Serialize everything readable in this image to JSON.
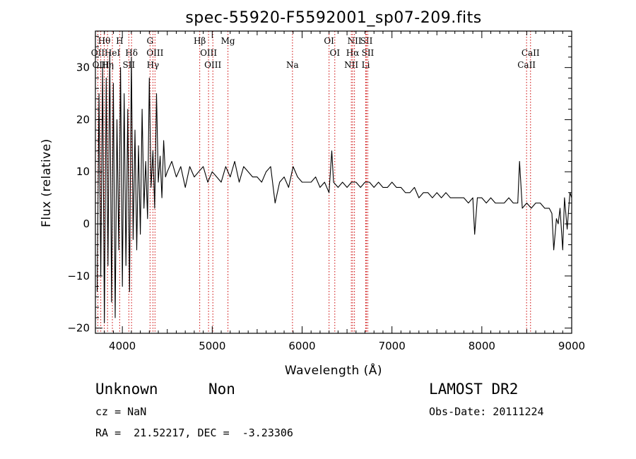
{
  "chart_data": {
    "type": "line",
    "title": "spec-55920-F5592001_sp07-209.fits",
    "xlabel": "Wavelength (Å)",
    "ylabel": "Flux (relative)",
    "xlim": [
      3700,
      9000
    ],
    "ylim": [
      -21,
      37
    ],
    "xticks": [
      4000,
      5000,
      6000,
      7000,
      8000,
      9000
    ],
    "yticks": [
      -20,
      -10,
      0,
      10,
      20,
      30
    ],
    "grid": false,
    "line_color": "#000000",
    "marker_color": "#cc0000",
    "series": [
      {
        "x": [
          3720,
          3740,
          3760,
          3780,
          3800,
          3820,
          3840,
          3860,
          3880,
          3900,
          3920,
          3940,
          3960,
          3980,
          4000,
          4020,
          4040,
          4060,
          4080,
          4100,
          4120,
          4140,
          4160,
          4180,
          4200,
          4220,
          4240,
          4260,
          4280,
          4300,
          4320,
          4340,
          4360,
          4380,
          4400,
          4420,
          4440,
          4460,
          4480,
          4500,
          4550,
          4600,
          4650,
          4700,
          4750,
          4800,
          4850,
          4900,
          4950,
          5000,
          5050,
          5100,
          5150,
          5200,
          5250,
          5300,
          5350,
          5400,
          5450,
          5500,
          5550,
          5600,
          5650,
          5700,
          5750,
          5800,
          5850,
          5900,
          5950,
          6000,
          6050,
          6100,
          6150,
          6200,
          6250,
          6300,
          6330,
          6350,
          6400,
          6450,
          6500,
          6550,
          6600,
          6650,
          6700,
          6750,
          6800,
          6850,
          6900,
          6950,
          7000,
          7050,
          7100,
          7150,
          7200,
          7250,
          7300,
          7350,
          7400,
          7450,
          7500,
          7550,
          7600,
          7650,
          7700,
          7750,
          7800,
          7850,
          7900,
          7920,
          7950,
          8000,
          8050,
          8100,
          8150,
          8200,
          8250,
          8300,
          8350,
          8400,
          8420,
          8450,
          8500,
          8550,
          8600,
          8650,
          8700,
          8750,
          8780,
          8800,
          8830,
          8850,
          8870,
          8900,
          8920,
          8950,
          8980,
          9000
        ],
        "y": [
          -13,
          25,
          -10,
          30,
          -19,
          28,
          -8,
          33,
          -15,
          27,
          -18,
          20,
          -5,
          30,
          -12,
          25,
          -8,
          22,
          -13,
          32,
          -3,
          18,
          -5,
          15,
          -2,
          22,
          3,
          12,
          1,
          28,
          7,
          14,
          3,
          25,
          8,
          13,
          5,
          16,
          9,
          10,
          12,
          9,
          11,
          7,
          11,
          9,
          10,
          11,
          8,
          10,
          9,
          8,
          11,
          9,
          12,
          8,
          11,
          10,
          9,
          9,
          8,
          10,
          11,
          4,
          8,
          9,
          7,
          11,
          9,
          8,
          8,
          8,
          9,
          7,
          8,
          6,
          14,
          8,
          7,
          8,
          7,
          8,
          8,
          7,
          8,
          8,
          7,
          8,
          7,
          7,
          8,
          7,
          7,
          6,
          6,
          7,
          5,
          6,
          6,
          5,
          6,
          5,
          6,
          5,
          5,
          5,
          5,
          4,
          5,
          -2,
          5,
          5,
          4,
          5,
          4,
          4,
          4,
          5,
          4,
          4,
          12,
          3,
          4,
          3,
          4,
          4,
          3,
          3,
          2,
          -5,
          1,
          0,
          3,
          -5,
          5,
          -1,
          6,
          5
        ]
      }
    ],
    "line_markers": [
      {
        "label": "Hθ",
        "wl": 3798,
        "row": 1
      },
      {
        "label": "H",
        "wl": 3970,
        "row": 1
      },
      {
        "label": "G",
        "wl": 4308,
        "row": 1
      },
      {
        "label": "Hβ",
        "wl": 4861,
        "row": 1
      },
      {
        "label": "Mg",
        "wl": 5175,
        "row": 1
      },
      {
        "label": "OI",
        "wl": 6300,
        "row": 1
      },
      {
        "label": "NII",
        "wl": 6583,
        "row": 1
      },
      {
        "label": "SII",
        "wl": 6716,
        "row": 1
      },
      {
        "label": "OII",
        "wl": 3727,
        "row": 2
      },
      {
        "label": "HeI",
        "wl": 3889,
        "row": 2
      },
      {
        "label": "Hδ",
        "wl": 4102,
        "row": 2
      },
      {
        "label": "OIII",
        "wl": 4363,
        "row": 2
      },
      {
        "label": "OIII",
        "wl": 4959,
        "row": 2
      },
      {
        "label": "OI",
        "wl": 6364,
        "row": 2
      },
      {
        "label": "Hα",
        "wl": 6563,
        "row": 2
      },
      {
        "label": "SII",
        "wl": 6731,
        "row": 2
      },
      {
        "label": "CaII",
        "wl": 8542,
        "row": 2
      },
      {
        "label": "OIII",
        "wl": 3760,
        "row": 3
      },
      {
        "label": "Hη",
        "wl": 3835,
        "row": 3
      },
      {
        "label": "SII",
        "wl": 4072,
        "row": 3
      },
      {
        "label": "Hγ",
        "wl": 4340,
        "row": 3
      },
      {
        "label": "OIII",
        "wl": 5007,
        "row": 3
      },
      {
        "label": "Na",
        "wl": 5893,
        "row": 3
      },
      {
        "label": "NII",
        "wl": 6548,
        "row": 3
      },
      {
        "label": "Li",
        "wl": 6708,
        "row": 3
      },
      {
        "label": "CaII",
        "wl": 8498,
        "row": 3
      }
    ]
  },
  "info": {
    "class": "Unknown",
    "subclass": "Non",
    "survey": "LAMOST DR2",
    "cz": "cz = NaN",
    "obs_date": "Obs-Date: 20111224",
    "coords": "RA =  21.52217, DEC =  -3.23306"
  }
}
